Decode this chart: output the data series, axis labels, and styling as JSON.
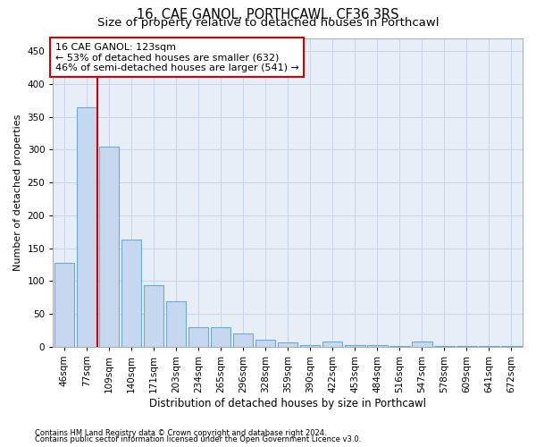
{
  "title": "16, CAE GANOL, PORTHCAWL, CF36 3RS",
  "subtitle": "Size of property relative to detached houses in Porthcawl",
  "xlabel": "Distribution of detached houses by size in Porthcawl",
  "ylabel": "Number of detached properties",
  "bin_labels": [
    "46sqm",
    "77sqm",
    "109sqm",
    "140sqm",
    "171sqm",
    "203sqm",
    "234sqm",
    "265sqm",
    "296sqm",
    "328sqm",
    "359sqm",
    "390sqm",
    "422sqm",
    "453sqm",
    "484sqm",
    "516sqm",
    "547sqm",
    "578sqm",
    "609sqm",
    "641sqm",
    "672sqm"
  ],
  "bar_heights": [
    127,
    365,
    304,
    163,
    93,
    69,
    30,
    30,
    20,
    10,
    6,
    2,
    8,
    3,
    2,
    1,
    8,
    1,
    1,
    1,
    1
  ],
  "bar_color": "#c5d8ef",
  "bar_edge_color": "#6aacd8",
  "red_line_color": "#cc0000",
  "red_line_x": 1.5,
  "annotation_line1": "16 CAE GANOL: 123sqm",
  "annotation_line2": "← 53% of detached houses are smaller (632)",
  "annotation_line3": "46% of semi-detached houses are larger (541) →",
  "annotation_box_color": "#ffffff",
  "annotation_box_edge_color": "#cc0000",
  "ylim": [
    0,
    470
  ],
  "yticks": [
    0,
    50,
    100,
    150,
    200,
    250,
    300,
    350,
    400,
    450
  ],
  "grid_color": "#c8d4e8",
  "bg_color": "#e8eef8",
  "footnote1": "Contains HM Land Registry data © Crown copyright and database right 2024.",
  "footnote2": "Contains public sector information licensed under the Open Government Licence v3.0.",
  "title_fontsize": 10.5,
  "subtitle_fontsize": 9.5,
  "tick_fontsize": 7.5,
  "ylabel_fontsize": 8,
  "xlabel_fontsize": 8.5,
  "annotation_fontsize": 8,
  "footnote_fontsize": 6,
  "bar_width": 0.9
}
